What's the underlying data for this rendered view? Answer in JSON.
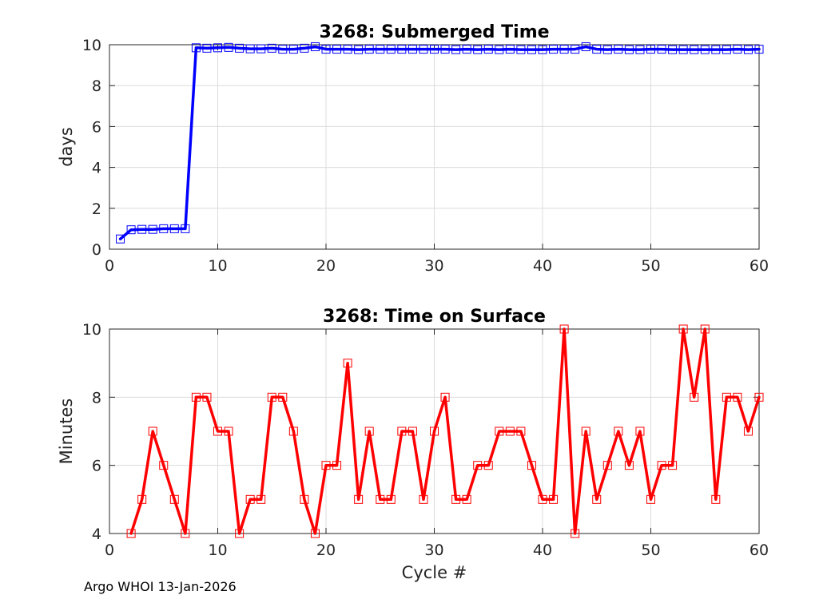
{
  "footer": "Argo WHOI 13-Jan-2026",
  "chart_data": [
    {
      "type": "line",
      "title": "3268: Submerged Time",
      "xlabel": "",
      "ylabel": "days",
      "xlim": [
        0,
        60
      ],
      "ylim": [
        0,
        10
      ],
      "xticks": [
        0,
        10,
        20,
        30,
        40,
        50,
        60
      ],
      "yticks": [
        0,
        2,
        4,
        6,
        8,
        10
      ],
      "grid": true,
      "color": "#0000ff",
      "marker": "square",
      "x": [
        1,
        2,
        3,
        4,
        5,
        6,
        7,
        8,
        9,
        10,
        11,
        12,
        13,
        14,
        15,
        16,
        17,
        18,
        19,
        20,
        21,
        22,
        23,
        24,
        25,
        26,
        27,
        28,
        29,
        30,
        31,
        32,
        33,
        34,
        35,
        36,
        37,
        38,
        39,
        40,
        41,
        42,
        43,
        44,
        45,
        46,
        47,
        48,
        49,
        50,
        51,
        52,
        53,
        54,
        55,
        56,
        57,
        58,
        59,
        60
      ],
      "y": [
        0.5,
        0.95,
        0.97,
        0.97,
        1.0,
        1.0,
        1.0,
        9.85,
        9.83,
        9.85,
        9.87,
        9.83,
        9.8,
        9.8,
        9.83,
        9.78,
        9.78,
        9.83,
        9.9,
        9.78,
        9.78,
        9.78,
        9.76,
        9.78,
        9.78,
        9.78,
        9.78,
        9.78,
        9.78,
        9.78,
        9.78,
        9.76,
        9.78,
        9.76,
        9.78,
        9.76,
        9.78,
        9.76,
        9.76,
        9.76,
        9.78,
        9.78,
        9.78,
        9.9,
        9.78,
        9.76,
        9.78,
        9.76,
        9.76,
        9.78,
        9.78,
        9.76,
        9.76,
        9.76,
        9.76,
        9.76,
        9.76,
        9.78,
        9.76,
        9.78
      ]
    },
    {
      "type": "line",
      "title": "3268: Time on Surface",
      "xlabel": "Cycle #",
      "ylabel": "Minutes",
      "xlim": [
        0,
        60
      ],
      "ylim": [
        4,
        10
      ],
      "xticks": [
        0,
        10,
        20,
        30,
        40,
        50,
        60
      ],
      "yticks": [
        4,
        6,
        8,
        10
      ],
      "grid": true,
      "color": "#ff0000",
      "marker": "square",
      "x": [
        2,
        3,
        4,
        5,
        6,
        7,
        8,
        9,
        10,
        11,
        12,
        13,
        14,
        15,
        16,
        17,
        18,
        19,
        20,
        21,
        22,
        23,
        24,
        25,
        26,
        27,
        28,
        29,
        30,
        31,
        32,
        33,
        34,
        35,
        36,
        37,
        38,
        39,
        40,
        41,
        42,
        43,
        44,
        45,
        46,
        47,
        48,
        49,
        50,
        51,
        52,
        53,
        54,
        55,
        56,
        57,
        58,
        59,
        60
      ],
      "y": [
        4,
        5,
        7,
        6,
        5,
        4,
        8,
        8,
        7,
        7,
        4,
        5,
        5,
        8,
        8,
        7,
        5,
        4,
        6,
        6,
        9,
        5,
        7,
        5,
        5,
        7,
        7,
        5,
        7,
        8,
        5,
        5,
        6,
        6,
        7,
        7,
        7,
        6,
        5,
        5,
        10,
        4,
        7,
        5,
        6,
        7,
        6,
        7,
        5,
        6,
        6,
        10,
        8,
        10,
        5,
        8,
        8,
        7,
        8
      ]
    }
  ]
}
